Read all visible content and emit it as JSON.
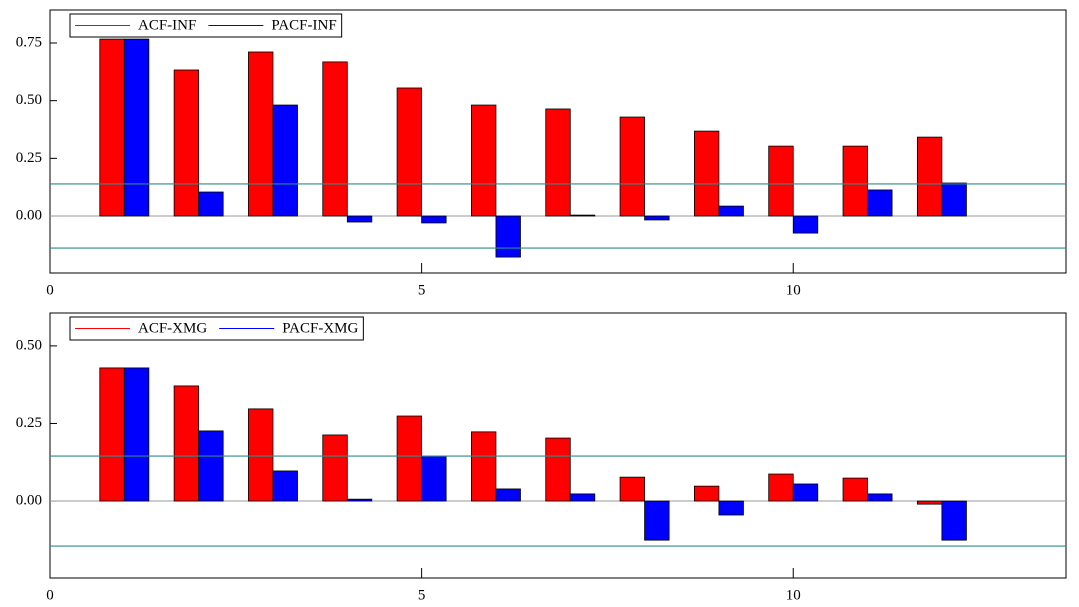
{
  "chart_data": [
    {
      "type": "bar",
      "x": [
        1,
        2,
        3,
        4,
        5,
        6,
        7,
        8,
        9,
        10,
        11,
        12
      ],
      "series": [
        {
          "name": "ACF-INF",
          "color": "#ff0000",
          "values": [
            0.767,
            0.633,
            0.711,
            0.668,
            0.555,
            0.481,
            0.464,
            0.429,
            0.368,
            0.303,
            0.303,
            0.342
          ]
        },
        {
          "name": "PACF-INF",
          "color": "#0000ff",
          "values": [
            0.767,
            0.104,
            0.481,
            -0.026,
            -0.03,
            -0.178,
            0.004,
            -0.017,
            0.043,
            -0.074,
            0.113,
            0.143
          ]
        }
      ],
      "xlim": [
        0,
        13.67
      ],
      "xticks": [
        0,
        5,
        10
      ],
      "ylim": [
        -0.247,
        0.893
      ],
      "yticks": [
        {
          "value": 0,
          "label": "0.00"
        },
        0.25,
        {
          "value": 0.5,
          "label": "0.50"
        },
        0.75
      ],
      "hlines": [
        0.139,
        -0.139
      ],
      "hline_color": "#2e8b8b",
      "legend": "upper left"
    },
    {
      "type": "bar",
      "x": [
        1,
        2,
        3,
        4,
        5,
        6,
        7,
        8,
        9,
        10,
        11,
        12
      ],
      "series": [
        {
          "name": "ACF-XMG",
          "color": "#ff0000",
          "values": [
            0.429,
            0.371,
            0.297,
            0.213,
            0.274,
            0.223,
            0.203,
            0.077,
            0.048,
            0.087,
            0.074,
            -0.01
          ]
        },
        {
          "name": "PACF-XMG",
          "color": "#0000ff",
          "values": [
            0.429,
            0.226,
            0.097,
            0.006,
            0.145,
            0.039,
            0.023,
            -0.126,
            -0.045,
            0.055,
            0.023,
            -0.126
          ]
        }
      ],
      "xlim": [
        0,
        13.67
      ],
      "xticks": [
        0,
        5,
        10
      ],
      "ylim": [
        -0.248,
        0.606
      ],
      "yticks": [
        {
          "value": 0,
          "label": "0.00"
        },
        0.25,
        {
          "value": 0.5,
          "label": "0.50"
        }
      ],
      "hlines": [
        0.145,
        -0.145
      ],
      "hline_color": "#2e8b8b",
      "legend": "upper left"
    }
  ]
}
